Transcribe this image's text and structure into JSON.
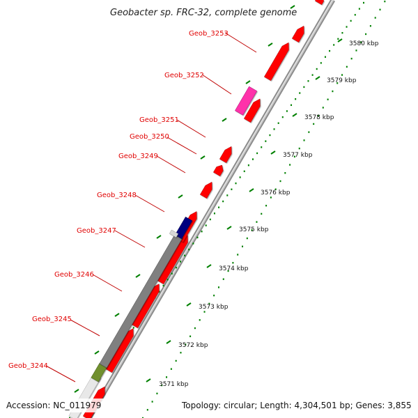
{
  "title": "Geobacter sp. FRC-32, complete genome",
  "footer": {
    "accession": "Accession: NC_011979",
    "summary": "Topology: circular; Length: 4,304,501 bp; Genes: 3,855"
  },
  "colors": {
    "gene_red": "#ff0000",
    "gene_magenta": "#ff33aa",
    "gene_navy": "#00007f",
    "gene_gray": "#808080",
    "gene_olive": "#6f8f2f",
    "label_red": "#e00000",
    "tick_green": "#008000",
    "backbone": "#9a9a9a"
  },
  "gene_labels": [
    {
      "id": "Geob_3253",
      "text": "Geob_3253"
    },
    {
      "id": "Geob_3252",
      "text": "Geob_3252"
    },
    {
      "id": "Geob_3251",
      "text": "Geob_3251"
    },
    {
      "id": "Geob_3250",
      "text": "Geob_3250"
    },
    {
      "id": "Geob_3249",
      "text": "Geob_3249"
    },
    {
      "id": "Geob_3248",
      "text": "Geob_3248"
    },
    {
      "id": "Geob_3247",
      "text": "Geob_3247"
    },
    {
      "id": "Geob_3246",
      "text": "Geob_3246"
    },
    {
      "id": "Geob_3245",
      "text": "Geob_3245"
    },
    {
      "id": "Geob_3244",
      "text": "Geob_3244"
    }
  ],
  "kbp_ticks": [
    "3571 kbp",
    "3572 kbp",
    "3573 kbp",
    "3574 kbp",
    "3575 kbp",
    "3576 kbp",
    "3577 kbp",
    "3578 kbp",
    "3579 kbp",
    "3580 kbp"
  ]
}
